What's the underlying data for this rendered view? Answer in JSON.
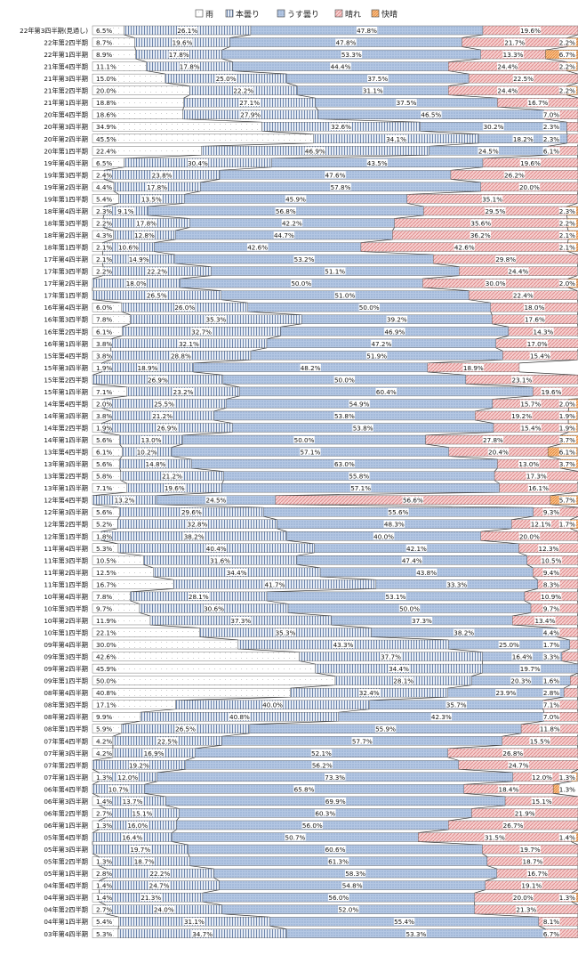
{
  "chart_data": {
    "type": "bar",
    "stacked": "100%",
    "orientation": "horizontal",
    "legend_position": "top",
    "series": [
      {
        "name": "雨",
        "color": "#ffffff",
        "pattern": "dots-sparse"
      },
      {
        "name": "本曇り",
        "color": "#e4ebf5",
        "pattern": "vertical-stripes"
      },
      {
        "name": "うす曇り",
        "color": "#b2c6e2",
        "pattern": "dots-dense"
      },
      {
        "name": "晴れ",
        "color": "#f2bcbc",
        "pattern": "diagonal"
      },
      {
        "name": "快晴",
        "color": "#f6b07a",
        "pattern": "diagonal-dense"
      }
    ],
    "categories": [
      "22年第3四半期(見通し)",
      "22年第2四半期",
      "22年第1四半期",
      "21年第4四半期",
      "21年第3四半期",
      "21年第2四半期",
      "21年第1四半期",
      "20年第4四半期",
      "20年第3四半期",
      "20年第2四半期",
      "20年第1四半期",
      "19年第4四半期",
      "19年第3四半期",
      "19年第2四半期",
      "19年第1四半期",
      "18年第4四半期",
      "18年第3四半期",
      "18年第2四半期",
      "18年第1四半期",
      "17年第4四半期",
      "17年第3四半期",
      "17年第2四半期",
      "17年第1四半期",
      "16年第4四半期",
      "16年第3四半期",
      "16年第2四半期",
      "16年第1四半期",
      "15年第4四半期",
      "15年第3四半期",
      "15年第2四半期",
      "15年第1四半期",
      "14年第4四半期",
      "14年第3四半期",
      "14年第2四半期",
      "14年第1四半期",
      "13年第4四半期",
      "13年第3四半期",
      "13年第2四半期",
      "13年第1四半期",
      "12年第4四半期",
      "12年第3四半期",
      "12年第2四半期",
      "12年第1四半期",
      "11年第4四半期",
      "11年第3四半期",
      "11年第2四半期",
      "11年第1四半期",
      "10年第4四半期",
      "10年第3四半期",
      "10年第2四半期",
      "10年第1四半期",
      "09年第4四半期",
      "09年第3四半期",
      "09年第2四半期",
      "09年第1四半期",
      "08年第4四半期",
      "08年第3四半期",
      "08年第2四半期",
      "08年第1四半期",
      "07年第4四半期",
      "07年第3四半期",
      "07年第2四半期",
      "07年第1四半期",
      "06年第4四半期",
      "06年第3四半期",
      "06年第2四半期",
      "06年第1四半期",
      "05年第4四半期",
      "05年第3四半期",
      "05年第2四半期",
      "05年第1四半期",
      "04年第4四半期",
      "04年第3四半期",
      "04年第2四半期",
      "04年第1四半期",
      "03年第4四半期"
    ],
    "values": [
      [
        6.5,
        26.1,
        47.8,
        19.6,
        0
      ],
      [
        8.7,
        19.6,
        47.8,
        21.7,
        2.2
      ],
      [
        8.9,
        17.8,
        53.3,
        13.3,
        6.7
      ],
      [
        11.1,
        17.8,
        44.4,
        24.4,
        2.2
      ],
      [
        15.0,
        25.0,
        37.5,
        22.5,
        0
      ],
      [
        20.0,
        22.2,
        31.1,
        24.4,
        2.2
      ],
      [
        18.8,
        27.1,
        37.5,
        16.7,
        0
      ],
      [
        18.6,
        27.9,
        46.5,
        7.0,
        0
      ],
      [
        34.9,
        32.6,
        30.2,
        2.3,
        0
      ],
      [
        45.5,
        34.1,
        18.2,
        2.3,
        0
      ],
      [
        22.4,
        46.9,
        24.5,
        6.1,
        0
      ],
      [
        6.5,
        30.4,
        43.5,
        19.6,
        0
      ],
      [
        2.4,
        23.8,
        47.6,
        26.2,
        0
      ],
      [
        4.4,
        17.8,
        57.8,
        20.0,
        0
      ],
      [
        5.4,
        13.5,
        45.9,
        35.1,
        0
      ],
      [
        2.3,
        9.1,
        56.8,
        29.5,
        2.3
      ],
      [
        2.2,
        17.8,
        42.2,
        35.6,
        2.2
      ],
      [
        4.3,
        12.8,
        44.7,
        36.2,
        2.1
      ],
      [
        2.1,
        10.6,
        42.6,
        42.6,
        2.1
      ],
      [
        2.1,
        14.9,
        53.2,
        29.8,
        0
      ],
      [
        2.2,
        22.2,
        51.1,
        24.4,
        0
      ],
      [
        0,
        18.0,
        50.0,
        30.0,
        2.0
      ],
      [
        0,
        26.5,
        51.0,
        22.4,
        0
      ],
      [
        6.0,
        26.0,
        50.0,
        18.0,
        0
      ],
      [
        7.8,
        35.3,
        39.2,
        17.6,
        0
      ],
      [
        6.1,
        32.7,
        46.9,
        14.3,
        0
      ],
      [
        3.8,
        32.1,
        47.2,
        17.0,
        0
      ],
      [
        3.8,
        28.8,
        51.9,
        15.4,
        0
      ],
      [
        1.9,
        18.9,
        48.2,
        18.9,
        0
      ],
      [
        0,
        26.9,
        50.0,
        23.1,
        0
      ],
      [
        7.1,
        23.2,
        60.4,
        19.6,
        0
      ],
      [
        2.0,
        25.5,
        54.9,
        15.7,
        2.0
      ],
      [
        3.8,
        21.2,
        53.8,
        19.2,
        1.9
      ],
      [
        1.9,
        26.9,
        53.8,
        15.4,
        1.9
      ],
      [
        5.6,
        13.0,
        50.0,
        27.8,
        3.7
      ],
      [
        6.1,
        10.2,
        57.1,
        20.4,
        6.1
      ],
      [
        5.6,
        14.8,
        63.0,
        13.0,
        3.7
      ],
      [
        5.8,
        21.2,
        55.8,
        17.3,
        0
      ],
      [
        7.1,
        19.6,
        57.1,
        16.1,
        0
      ],
      [
        0,
        13.2,
        24.5,
        56.6,
        5.7
      ],
      [
        5.6,
        29.6,
        55.6,
        9.3,
        0
      ],
      [
        5.2,
        32.8,
        48.3,
        12.1,
        1.7
      ],
      [
        1.8,
        38.2,
        40.0,
        20.0,
        0
      ],
      [
        5.3,
        40.4,
        42.1,
        12.3,
        0
      ],
      [
        10.5,
        31.6,
        47.4,
        10.5,
        0
      ],
      [
        12.5,
        34.4,
        43.8,
        9.4,
        0
      ],
      [
        16.7,
        41.7,
        33.3,
        8.3,
        0
      ],
      [
        7.8,
        28.1,
        53.1,
        10.9,
        0
      ],
      [
        9.7,
        30.6,
        50.0,
        9.7,
        0
      ],
      [
        11.9,
        37.3,
        37.3,
        13.4,
        0
      ],
      [
        22.1,
        35.3,
        38.2,
        4.4,
        0
      ],
      [
        30.0,
        43.3,
        25.0,
        1.7,
        0
      ],
      [
        42.6,
        37.7,
        16.4,
        3.3,
        0
      ],
      [
        45.9,
        34.4,
        19.7,
        0,
        0
      ],
      [
        50.0,
        28.1,
        20.3,
        1.6,
        0
      ],
      [
        40.8,
        32.4,
        23.9,
        2.8,
        0
      ],
      [
        17.1,
        40.0,
        35.7,
        7.1,
        0
      ],
      [
        9.9,
        40.8,
        42.3,
        7.0,
        0
      ],
      [
        5.9,
        26.5,
        55.9,
        11.8,
        0
      ],
      [
        4.2,
        22.5,
        57.7,
        15.5,
        0
      ],
      [
        4.2,
        16.9,
        52.1,
        26.8,
        0
      ],
      [
        0,
        19.2,
        56.2,
        24.7,
        0
      ],
      [
        1.3,
        12.0,
        73.3,
        12.0,
        1.3
      ],
      [
        0,
        10.7,
        65.8,
        18.4,
        1.3
      ],
      [
        1.4,
        13.7,
        69.9,
        15.1,
        0
      ],
      [
        2.7,
        15.1,
        60.3,
        21.9,
        0
      ],
      [
        1.3,
        16.0,
        56.0,
        26.7,
        0
      ],
      [
        0,
        16.4,
        50.7,
        31.5,
        1.4
      ],
      [
        0,
        19.7,
        60.6,
        19.7,
        0
      ],
      [
        1.3,
        18.7,
        61.3,
        18.7,
        0
      ],
      [
        2.8,
        22.2,
        58.3,
        16.7,
        0
      ],
      [
        1.4,
        24.7,
        54.8,
        19.1,
        0
      ],
      [
        1.4,
        21.3,
        56.0,
        20.0,
        1.3
      ],
      [
        2.7,
        24.0,
        52.0,
        21.3,
        0
      ],
      [
        5.4,
        31.1,
        55.4,
        8.1,
        0
      ],
      [
        5.3,
        34.7,
        53.3,
        6.7,
        0
      ]
    ],
    "labels": [
      [
        "6.5%",
        "26.1%",
        "47.8%",
        "19.6%",
        ""
      ],
      [
        "8.7%",
        "19.6%",
        "47.8%",
        "21.7%",
        "2.2%"
      ],
      [
        "8.9%",
        "17.8%",
        "53.3%",
        "13.3%",
        "6.7%"
      ],
      [
        "11.1%",
        "17.8%",
        "44.4%",
        "24.4%",
        "2.2%"
      ],
      [
        "15.0%",
        "25.0%",
        "37.5%",
        "22.5%",
        ""
      ],
      [
        "20.0%",
        "22.2%",
        "31.1%",
        "24.4%",
        "2.2%"
      ],
      [
        "18.8%",
        "27.1%",
        "37.5%",
        "16.7%",
        ""
      ],
      [
        "18.6%",
        "27.9%",
        "46.5%",
        "7.0%",
        ""
      ],
      [
        "34.9%",
        "32.6%",
        "30.2%",
        "2.3%",
        ""
      ],
      [
        "45.5%",
        "34.1%",
        "18.2%",
        "2.3%",
        ""
      ],
      [
        "22.4%",
        "46.9%",
        "24.5%",
        "6.1%",
        ""
      ],
      [
        "6.5%",
        "30.4%",
        "43.5%",
        "19.6%",
        ""
      ],
      [
        "2.4%",
        "23.8%",
        "47.6%",
        "26.2%",
        ""
      ],
      [
        "4.4%",
        "17.8%",
        "57.8%",
        "20.0%",
        ""
      ],
      [
        "5.4%",
        "13.5%",
        "45.9%",
        "35.1%",
        ""
      ],
      [
        "2.3%",
        "9.1%",
        "56.8%",
        "29.5%",
        "2.3%"
      ],
      [
        "2.2%",
        "17.8%",
        "42.2%",
        "35.6%",
        "2.2%"
      ],
      [
        "4.3%",
        "12.8%",
        "44.7%",
        "36.2%",
        "2.1%"
      ],
      [
        "2.1%",
        "10.6%",
        "42.6%",
        "42.6%",
        "2.1%"
      ],
      [
        "2.1%",
        "14.9%",
        "53.2%",
        "29.8%",
        ""
      ],
      [
        "2.2%",
        "22.2%",
        "51.1%",
        "24.4%",
        ""
      ],
      [
        "",
        "18.0%",
        "50.0%",
        "30.0%",
        "2.0%"
      ],
      [
        "",
        "26.5%",
        "51.0%",
        "22.4%",
        ""
      ],
      [
        "6.0%",
        "26.0%",
        "50.0%",
        "18.0%",
        ""
      ],
      [
        "7.8%",
        "35.3%",
        "39.2%",
        "17.6%",
        ""
      ],
      [
        "6.1%",
        "32.7%",
        "46.9%",
        "14.3%",
        ""
      ],
      [
        "3.8%",
        "32.1%",
        "47.2%",
        "17.0%",
        ""
      ],
      [
        "3.8%",
        "28.8%",
        "51.9%",
        "15.4%",
        ""
      ],
      [
        "1.9%",
        "18.9%",
        "48.2%",
        "18.9%",
        ""
      ],
      [
        "",
        "26.9%",
        "50.0%",
        "23.1%",
        ""
      ],
      [
        "7.1%",
        "23.2%",
        "60.4%",
        "19.6%",
        ""
      ],
      [
        "2.0%",
        "25.5%",
        "54.9%",
        "15.7%",
        "2.0%"
      ],
      [
        "3.8%",
        "21.2%",
        "53.8%",
        "19.2%",
        "1.9%"
      ],
      [
        "1.9%",
        "26.9%",
        "53.8%",
        "15.4%",
        "1.9%"
      ],
      [
        "5.6%",
        "13.0%",
        "50.0%",
        "27.8%",
        "3.7%"
      ],
      [
        "6.1%",
        "10.2%",
        "57.1%",
        "20.4%",
        "6.1%"
      ],
      [
        "5.6%",
        "14.8%",
        "63.0%",
        "13.0%",
        "3.7%"
      ],
      [
        "5.8%",
        "21.2%",
        "55.8%",
        "17.3%",
        ""
      ],
      [
        "7.1%",
        "19.6%",
        "57.1%",
        "16.1%",
        ""
      ],
      [
        "",
        "13.2%",
        "24.5%",
        "56.6%",
        "5.7%"
      ],
      [
        "5.6%",
        "29.6%",
        "55.6%",
        "9.3%",
        ""
      ],
      [
        "5.2%",
        "32.8%",
        "48.3%",
        "12.1%",
        "1.7%"
      ],
      [
        "1.8%",
        "38.2%",
        "40.0%",
        "20.0%",
        ""
      ],
      [
        "5.3%",
        "40.4%",
        "42.1%",
        "12.3%",
        ""
      ],
      [
        "10.5%",
        "31.6%",
        "47.4%",
        "10.5%",
        ""
      ],
      [
        "12.5%",
        "34.4%",
        "43.8%",
        "9.4%",
        ""
      ],
      [
        "16.7%",
        "41.7%",
        "33.3%",
        "8.3%",
        ""
      ],
      [
        "7.8%",
        "28.1%",
        "53.1%",
        "10.9%",
        ""
      ],
      [
        "9.7%",
        "30.6%",
        "50.0%",
        "9.7%",
        ""
      ],
      [
        "11.9%",
        "37.3%",
        "37.3%",
        "13.4%",
        ""
      ],
      [
        "22.1%",
        "35.3%",
        "38.2%",
        "4.4%",
        ""
      ],
      [
        "30.0%",
        "43.3%",
        "25.0%",
        "1.7%",
        ""
      ],
      [
        "42.6%",
        "37.7%",
        "16.4%",
        "3.3%",
        ""
      ],
      [
        "45.9%",
        "34.4%",
        "19.7%",
        "",
        ""
      ],
      [
        "50.0%",
        "28.1%",
        "20.3%",
        "1.6%",
        ""
      ],
      [
        "40.8%",
        "32.4%",
        "23.9%",
        "2.8%",
        ""
      ],
      [
        "17.1%",
        "40.0%",
        "35.7%",
        "7.1%",
        ""
      ],
      [
        "9.9%",
        "40.8%",
        "42.3%",
        "7.0%",
        ""
      ],
      [
        "5.9%",
        "26.5%",
        "55.9%",
        "11.8%",
        ""
      ],
      [
        "4.2%",
        "22.5%",
        "57.7%",
        "15.5%",
        ""
      ],
      [
        "4.2%",
        "16.9%",
        "52.1%",
        "26.8%",
        ""
      ],
      [
        "",
        "19.2%",
        "56.2%",
        "24.7%",
        ""
      ],
      [
        "1.3%",
        "12.0%",
        "73.3%",
        "12.0%",
        "1.3%"
      ],
      [
        "",
        "10.7%",
        "65.8%",
        "18.4%",
        "1.3%"
      ],
      [
        "1.4%",
        "13.7%",
        "69.9%",
        "15.1%",
        ""
      ],
      [
        "2.7%",
        "15.1%",
        "60.3%",
        "21.9%",
        ""
      ],
      [
        "1.3%",
        "16.0%",
        "56.0%",
        "26.7%",
        ""
      ],
      [
        "",
        "16.4%",
        "50.7%",
        "31.5%",
        "1.4%"
      ],
      [
        "",
        "19.7%",
        "60.6%",
        "19.7%",
        ""
      ],
      [
        "1.3%",
        "18.7%",
        "61.3%",
        "18.7%",
        ""
      ],
      [
        "2.8%",
        "22.2%",
        "58.3%",
        "16.7%",
        ""
      ],
      [
        "1.4%",
        "24.7%",
        "54.8%",
        "19.1%",
        ""
      ],
      [
        "1.4%",
        "21.3%",
        "56.0%",
        "20.0%",
        "1.3%"
      ],
      [
        "2.7%",
        "24.0%",
        "52.0%",
        "21.3%",
        ""
      ],
      [
        "5.4%",
        "31.1%",
        "55.4%",
        "8.1%",
        ""
      ],
      [
        "5.3%",
        "34.7%",
        "53.3%",
        "6.7%",
        ""
      ]
    ],
    "xlim": [
      0,
      100
    ],
    "grid": false
  }
}
